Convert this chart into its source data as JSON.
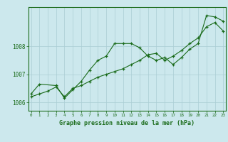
{
  "xlabel": "Graphe pression niveau de la mer (hPa)",
  "background_color": "#cce8ed",
  "grid_color": "#aacdd4",
  "line_color": "#1a6b1a",
  "hours": [
    0,
    1,
    2,
    3,
    4,
    5,
    6,
    7,
    8,
    9,
    10,
    11,
    12,
    13,
    14,
    15,
    16,
    17,
    18,
    19,
    20,
    21,
    22,
    23
  ],
  "line1": [
    1006.3,
    1006.65,
    null,
    1006.6,
    1006.15,
    1006.45,
    1006.75,
    1007.15,
    1007.5,
    1007.65,
    1008.1,
    1008.1,
    1008.1,
    1007.95,
    1007.65,
    1007.5,
    1007.6,
    1007.35,
    1007.6,
    1007.9,
    1008.1,
    1009.1,
    1009.05,
    1008.9
  ],
  "line2": [
    1006.2,
    1006.3,
    1006.4,
    1006.55,
    1006.2,
    1006.5,
    1006.6,
    1006.75,
    1006.9,
    1007.0,
    1007.1,
    1007.2,
    1007.35,
    1007.5,
    1007.7,
    1007.75,
    1007.5,
    1007.65,
    1007.85,
    1008.1,
    1008.3,
    1008.7,
    1008.85,
    1008.55
  ],
  "ylim": [
    1005.7,
    1009.4
  ],
  "yticks": [
    1006,
    1007,
    1008
  ],
  "xticks": [
    0,
    1,
    2,
    3,
    4,
    5,
    6,
    7,
    8,
    9,
    10,
    11,
    12,
    13,
    14,
    15,
    16,
    17,
    18,
    19,
    20,
    21,
    22,
    23
  ]
}
